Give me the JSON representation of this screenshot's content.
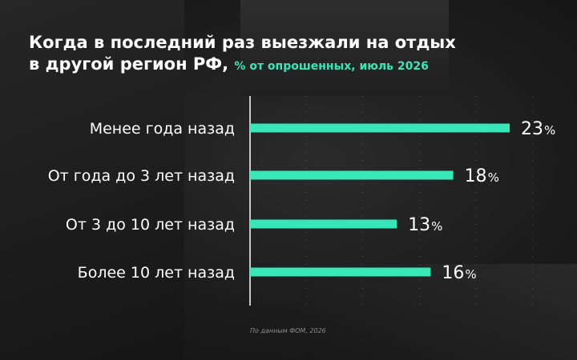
{
  "header": {
    "title_line1": "Когда в последний раз выезжали на отдых",
    "title_line2": "в другой регион РФ,",
    "subtitle": "% от опрошенных, июль 2026"
  },
  "source": "По данным ФОМ, 2026",
  "colors": {
    "bar": "#39e6b8",
    "subtitle": "#39e6b8",
    "text": "#ffffff",
    "grid": "#8a8a8a"
  },
  "chart_data": {
    "type": "bar",
    "orientation": "horizontal",
    "categories": [
      "Менее года назад",
      "От года до 3 лет назад",
      "От 3 до 10 лет назад",
      "Более 10 лет назад"
    ],
    "values": [
      23,
      18,
      13,
      16
    ],
    "unit": "%",
    "title": "Когда в последний раз выезжали на отдых в другой регион РФ,",
    "subtitle": "% от опрошенных, июль 2026",
    "xlim": [
      0,
      25
    ],
    "grid": true,
    "legend": "none"
  }
}
